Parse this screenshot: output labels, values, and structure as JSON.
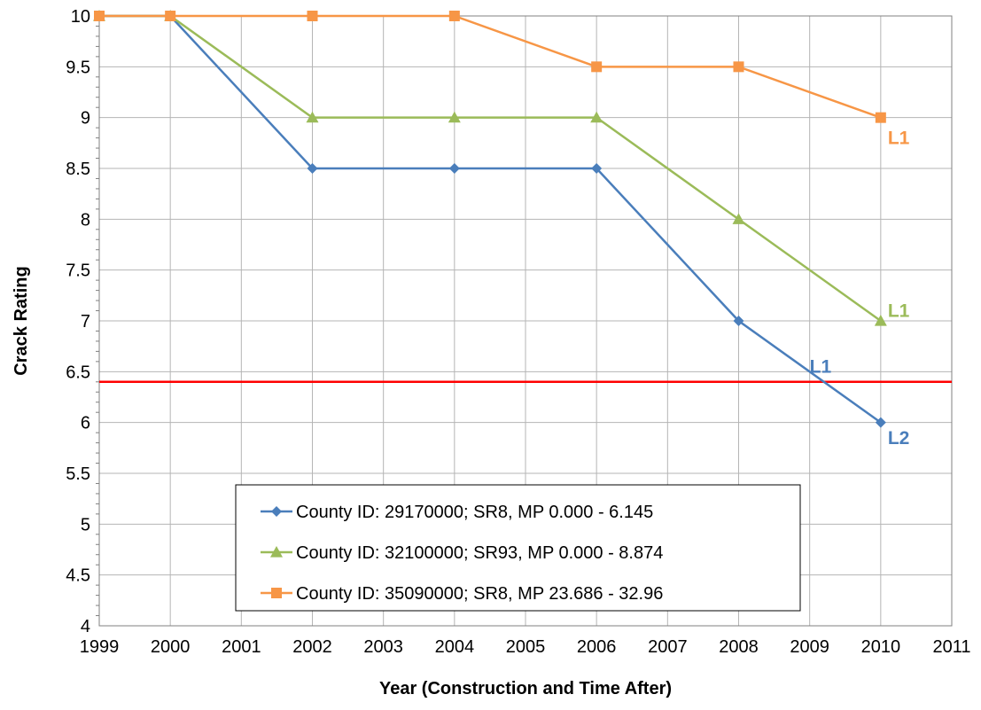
{
  "chart_data": {
    "type": "line",
    "title": "",
    "xlabel": "Year (Construction and Time After)",
    "ylabel": "Crack Rating",
    "xlim": [
      1999,
      2011
    ],
    "ylim": [
      4,
      10
    ],
    "xticks": [
      1999,
      2000,
      2001,
      2002,
      2003,
      2004,
      2005,
      2006,
      2007,
      2008,
      2009,
      2010,
      2011
    ],
    "yticks": [
      4,
      4.5,
      5,
      5.5,
      6,
      6.5,
      7,
      7.5,
      8,
      8.5,
      9,
      9.5,
      10
    ],
    "grid": true,
    "legend_position": "bottom-center",
    "series": [
      {
        "name": "County ID: 29170000; SR8, MP 0.000 - 6.145",
        "color": "#4A7EBB",
        "marker": "diamond",
        "x": [
          1999,
          2000,
          2002,
          2004,
          2006,
          2008,
          2010
        ],
        "values": [
          10,
          10,
          8.5,
          8.5,
          8.5,
          7,
          6
        ]
      },
      {
        "name": "County ID: 32100000; SR93, MP  0.000 - 8.874",
        "color": "#9BBB59",
        "marker": "triangle",
        "x": [
          1999,
          2000,
          2002,
          2004,
          2006,
          2008,
          2010
        ],
        "values": [
          10,
          10,
          9,
          9,
          9,
          8,
          7
        ]
      },
      {
        "name": "County ID: 35090000; SR8, MP 23.686 - 32.96",
        "color": "#F79646",
        "marker": "square",
        "x": [
          1999,
          2000,
          2002,
          2004,
          2006,
          2008,
          2010
        ],
        "values": [
          10,
          10,
          10,
          10,
          9.5,
          9.5,
          9
        ]
      }
    ],
    "reference_line": {
      "y": 6.4,
      "color": "#FF0000"
    },
    "annotations": [
      {
        "text": "L1",
        "x": 2010.1,
        "y": 8.8,
        "color": "#F79646"
      },
      {
        "text": "L1",
        "x": 2010.1,
        "y": 7.1,
        "color": "#9BBB59"
      },
      {
        "text": "L1",
        "x": 2009.0,
        "y": 6.55,
        "color": "#4A7EBB"
      },
      {
        "text": "L2",
        "x": 2010.1,
        "y": 5.85,
        "color": "#4A7EBB"
      }
    ]
  }
}
